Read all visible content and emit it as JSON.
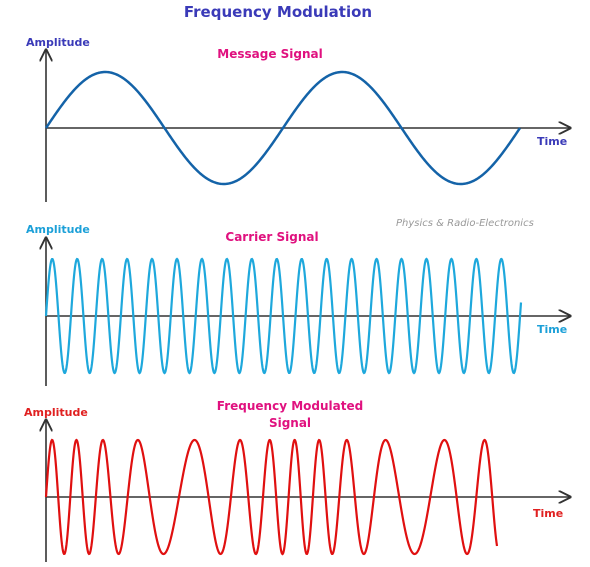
{
  "title": "Frequency Modulation",
  "watermark": "Physics & Radio-Electronics",
  "panels": [
    {
      "y_label": "Amplitude",
      "title": [
        "Message Signal"
      ],
      "x_label": "Time"
    },
    {
      "y_label": "Amplitude",
      "title": [
        "Carrier Signal"
      ],
      "x_label": "Time"
    },
    {
      "y_label": "Amplitude",
      "title": [
        "Frequency Modulated",
        "Signal"
      ],
      "x_label": "Time"
    }
  ]
}
